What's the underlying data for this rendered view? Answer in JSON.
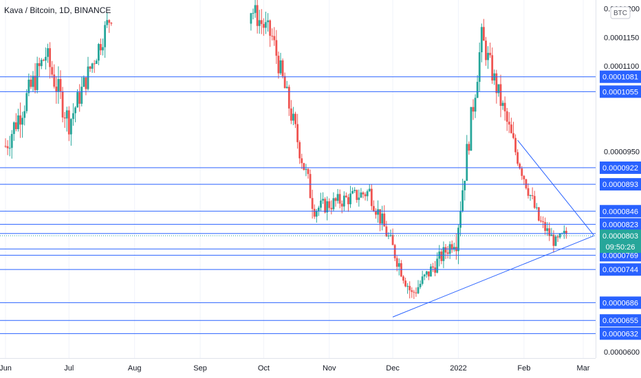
{
  "header": {
    "title": "Kava / Bitcoin, 1D, BINANCE"
  },
  "currency": "BTC",
  "colors": {
    "up": "#26a69a",
    "down": "#ef5350",
    "level": "#2962ff",
    "label_bg": "#2962ff",
    "last_bg": "#26a69a",
    "grid": "#f0f3fa",
    "axis_text": "#131722"
  },
  "countdown": "09:50:26",
  "chart_data": {
    "type": "candlestick",
    "title": "Kava / Bitcoin, 1D, BINANCE",
    "ylim": [
      5.94e-05,
      0.0001208
    ],
    "y_ticks": [
      "0.0001200",
      "0.0001150",
      "0.0001100",
      "0.0000950",
      "0.0000600"
    ],
    "x_ticks": [
      "Jun",
      "Jul",
      "Aug",
      "Sep",
      "Oct",
      "Nov",
      "Dec",
      "2022",
      "Feb",
      "Mar"
    ],
    "levels": [
      {
        "label": "0.0001081",
        "value": 0.0001081
      },
      {
        "label": "0.0001055",
        "value": 0.0001055
      },
      {
        "label": "0.0000922",
        "value": 9.22e-05
      },
      {
        "label": "0.0000893",
        "value": 8.93e-05
      },
      {
        "label": "0.0000846",
        "value": 8.46e-05
      },
      {
        "label": "0.0000823",
        "value": 8.23e-05
      },
      {
        "label": "0.0000807",
        "value": 8.07e-05
      },
      {
        "label": "0.0000780",
        "value": 7.8e-05
      },
      {
        "label": "0.0000769",
        "value": 7.69e-05
      },
      {
        "label": "0.0000744",
        "value": 7.44e-05
      },
      {
        "label": "0.0000686",
        "value": 6.86e-05
      },
      {
        "label": "0.0000655",
        "value": 6.55e-05
      },
      {
        "label": "0.0000632",
        "value": 6.32e-05
      }
    ],
    "last_price": {
      "label": "0.0000803",
      "value": 8.03e-05
    },
    "trendlines": [
      {
        "from": [
          "2021-12-01",
          6.61e-05
        ],
        "to": [
          "2022-03-06",
          8.03e-05
        ]
      },
      {
        "from": [
          "2022-01-29",
          9.7e-05
        ],
        "to": [
          "2022-03-06",
          8.04e-05
        ]
      }
    ],
    "price_segments": [
      {
        "from": "2021-06-01",
        "to": "2021-06-20",
        "start": 9.6e-05,
        "end": 0.000112,
        "vol": 3e-06
      },
      {
        "from": "2021-06-20",
        "to": "2021-07-01",
        "start": 0.000112,
        "end": 0.0001,
        "vol": 3e-06
      },
      {
        "from": "2021-07-01",
        "to": "2021-07-22",
        "start": 0.0001,
        "end": 0.00012,
        "vol": 2.5e-06
      },
      {
        "from": "2021-09-25",
        "to": "2021-10-05",
        "start": 0.00012,
        "end": 0.000115,
        "vol": 2.5e-06
      },
      {
        "from": "2021-10-05",
        "to": "2021-10-25",
        "start": 0.000115,
        "end": 8.5e-05,
        "vol": 2.5e-06
      },
      {
        "from": "2021-10-25",
        "to": "2021-11-20",
        "start": 8.5e-05,
        "end": 8.8e-05,
        "vol": 1.8e-06
      },
      {
        "from": "2021-11-20",
        "to": "2021-12-10",
        "start": 8.8e-05,
        "end": 7e-05,
        "vol": 2e-06
      },
      {
        "from": "2021-12-10",
        "to": "2021-12-31",
        "start": 7e-05,
        "end": 8e-05,
        "vol": 1.8e-06
      },
      {
        "from": "2021-12-31",
        "to": "2022-01-12",
        "start": 8e-05,
        "end": 0.000115,
        "vol": 3e-06
      },
      {
        "from": "2022-01-12",
        "to": "2022-01-28",
        "start": 0.000115,
        "end": 9.5e-05,
        "vol": 2.5e-06
      },
      {
        "from": "2022-01-28",
        "to": "2022-02-08",
        "start": 9.5e-05,
        "end": 8.3e-05,
        "vol": 1.8e-06
      },
      {
        "from": "2022-02-08",
        "to": "2022-02-16",
        "start": 8.3e-05,
        "end": 7.9e-05,
        "vol": 1.5e-06
      },
      {
        "from": "2022-02-16",
        "to": "2022-02-22",
        "start": 7.9e-05,
        "end": 8.1e-05,
        "vol": 1.5e-06
      }
    ]
  }
}
